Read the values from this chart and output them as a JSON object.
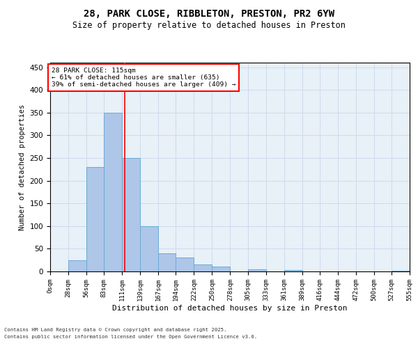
{
  "title1": "28, PARK CLOSE, RIBBLETON, PRESTON, PR2 6YW",
  "title2": "Size of property relative to detached houses in Preston",
  "xlabel": "Distribution of detached houses by size in Preston",
  "ylabel": "Number of detached properties",
  "bar_edges": [
    0,
    28,
    56,
    83,
    111,
    139,
    167,
    194,
    222,
    250,
    278,
    305,
    333,
    361,
    389,
    416,
    444,
    472,
    500,
    527,
    555
  ],
  "bar_heights": [
    0,
    25,
    230,
    350,
    250,
    100,
    40,
    30,
    15,
    10,
    0,
    5,
    0,
    3,
    0,
    0,
    0,
    0,
    0,
    2
  ],
  "bar_color": "#aec6e8",
  "bar_edgecolor": "#6aaad4",
  "bar_linewidth": 0.7,
  "vline_x": 115,
  "vline_color": "red",
  "vline_linewidth": 1.2,
  "annotation_text": "28 PARK CLOSE: 115sqm\n← 61% of detached houses are smaller (635)\n39% of semi-detached houses are larger (409) →",
  "ylim": [
    0,
    460
  ],
  "yticks": [
    0,
    50,
    100,
    150,
    200,
    250,
    300,
    350,
    400,
    450
  ],
  "tick_labels": [
    "0sqm",
    "28sqm",
    "56sqm",
    "83sqm",
    "111sqm",
    "139sqm",
    "167sqm",
    "194sqm",
    "222sqm",
    "250sqm",
    "278sqm",
    "305sqm",
    "333sqm",
    "361sqm",
    "389sqm",
    "416sqm",
    "444sqm",
    "472sqm",
    "500sqm",
    "527sqm",
    "555sqm"
  ],
  "grid_color": "#c8d8e8",
  "bg_color": "#e8f0f8",
  "footnote1": "Contains HM Land Registry data © Crown copyright and database right 2025.",
  "footnote2": "Contains public sector information licensed under the Open Government Licence v3.0."
}
